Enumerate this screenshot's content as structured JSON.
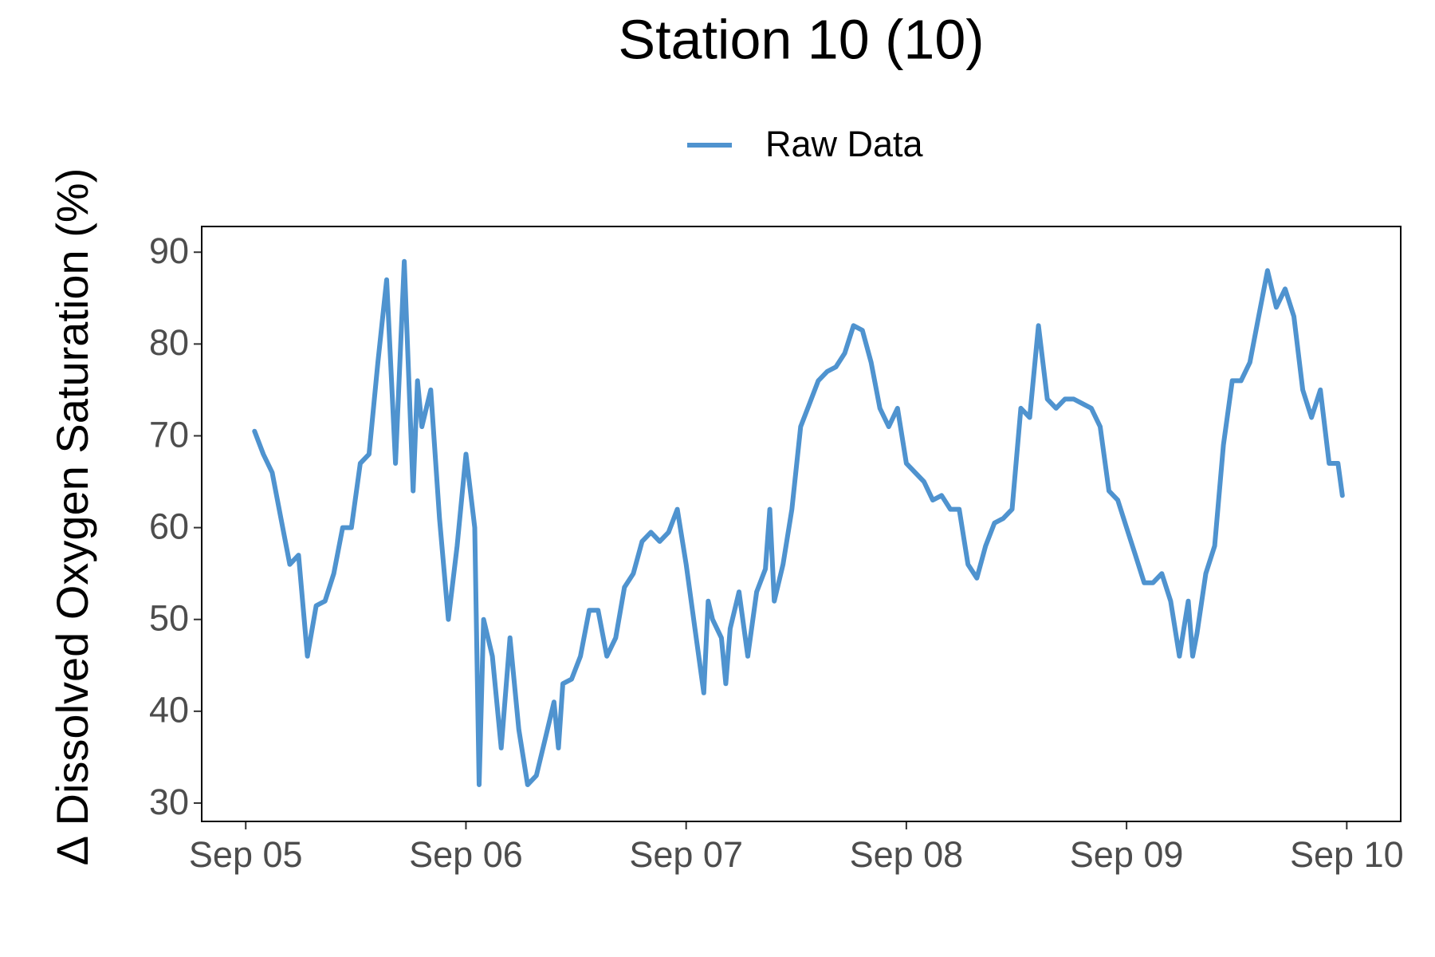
{
  "chart_data": {
    "type": "line",
    "title": "Station 10 (10)",
    "y_label": "Δ Dissolved Oxygen Saturation (%)",
    "x": [
      5.04,
      5.08,
      5.12,
      5.16,
      5.2,
      5.24,
      5.28,
      5.32,
      5.36,
      5.4,
      5.44,
      5.48,
      5.52,
      5.56,
      5.6,
      5.64,
      5.68,
      5.72,
      5.76,
      5.78,
      5.8,
      5.84,
      5.88,
      5.92,
      5.96,
      6.0,
      6.04,
      6.06,
      6.08,
      6.12,
      6.16,
      6.2,
      6.24,
      6.28,
      6.32,
      6.36,
      6.4,
      6.42,
      6.44,
      6.48,
      6.52,
      6.56,
      6.6,
      6.64,
      6.68,
      6.72,
      6.76,
      6.8,
      6.84,
      6.88,
      6.92,
      6.96,
      7.0,
      7.04,
      7.08,
      7.1,
      7.12,
      7.16,
      7.18,
      7.2,
      7.24,
      7.28,
      7.32,
      7.36,
      7.38,
      7.4,
      7.44,
      7.48,
      7.52,
      7.56,
      7.6,
      7.64,
      7.68,
      7.72,
      7.76,
      7.8,
      7.84,
      7.88,
      7.92,
      7.96,
      8.0,
      8.04,
      8.08,
      8.12,
      8.16,
      8.2,
      8.24,
      8.28,
      8.32,
      8.36,
      8.4,
      8.44,
      8.48,
      8.52,
      8.56,
      8.6,
      8.64,
      8.68,
      8.72,
      8.76,
      8.8,
      8.84,
      8.88,
      8.92,
      8.96,
      9.0,
      9.04,
      9.08,
      9.12,
      9.16,
      9.2,
      9.24,
      9.28,
      9.3,
      9.32,
      9.36,
      9.4,
      9.44,
      9.48,
      9.52,
      9.56,
      9.6,
      9.64,
      9.68,
      9.72,
      9.76,
      9.8,
      9.84,
      9.88,
      9.92,
      9.96,
      9.98
    ],
    "series": [
      {
        "name": "Raw Data",
        "color": "#4f93cf",
        "values": [
          70.5,
          68,
          66,
          61,
          56,
          57,
          46,
          51.5,
          52,
          55,
          60,
          60,
          67,
          68,
          78,
          87,
          67,
          89,
          64,
          76,
          71,
          75,
          61,
          50,
          58,
          68,
          60,
          32,
          50,
          46,
          36,
          48,
          38,
          32,
          33,
          37,
          41,
          36,
          43,
          43.5,
          46,
          51,
          51,
          46,
          48,
          53.5,
          55,
          58.5,
          59.5,
          58.5,
          59.5,
          62,
          56,
          49,
          42,
          52,
          50,
          48,
          43,
          49,
          53,
          46,
          53,
          55.5,
          62,
          52,
          56,
          62,
          71,
          73.5,
          76,
          77,
          77.5,
          79,
          82,
          81.5,
          78,
          73,
          71,
          73,
          67,
          66,
          65,
          63,
          63.5,
          62,
          62,
          56,
          54.5,
          58,
          60.5,
          61,
          62,
          73,
          72,
          82,
          74,
          73,
          74,
          74,
          73.5,
          73,
          71,
          64,
          63,
          60,
          57,
          54,
          54,
          55,
          52,
          46,
          52,
          46,
          48.5,
          55,
          58,
          69,
          76,
          76,
          78,
          83,
          88,
          84,
          86,
          83,
          75,
          72,
          75,
          67,
          67,
          63.5
        ]
      }
    ],
    "xlim": [
      4.8,
      10.245
    ],
    "ylim": [
      28,
      92.8
    ],
    "xticks": [
      {
        "value": 5,
        "label": "Sep 05"
      },
      {
        "value": 6,
        "label": "Sep 06"
      },
      {
        "value": 7,
        "label": "Sep 07"
      },
      {
        "value": 8,
        "label": "Sep 08"
      },
      {
        "value": 9,
        "label": "Sep 09"
      },
      {
        "value": 10,
        "label": "Sep 10"
      }
    ],
    "yticks": [
      30,
      40,
      50,
      60,
      70,
      80,
      90
    ],
    "grid": false,
    "legend": "top"
  }
}
